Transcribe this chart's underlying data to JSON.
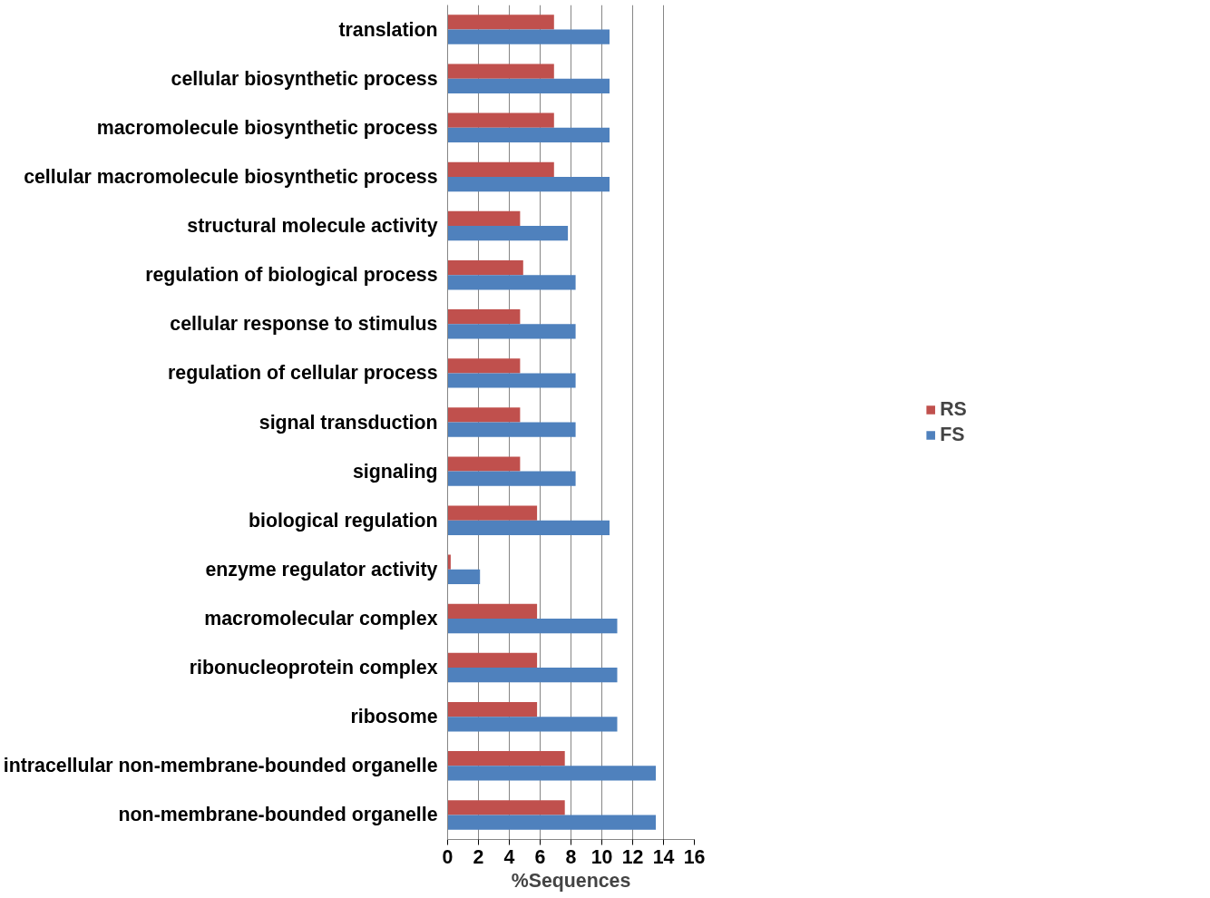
{
  "chart_data": {
    "type": "bar",
    "orientation": "horizontal",
    "xlabel": "%Sequences",
    "categories": [
      "translation",
      "cellular biosynthetic process",
      "macromolecule biosynthetic process",
      "cellular macromolecule biosynthetic process",
      "structural molecule activity",
      "regulation of biological process",
      "cellular response to stimulus",
      "regulation of cellular process",
      "signal transduction",
      "signaling",
      "biological regulation",
      "enzyme regulator activity",
      "macromolecular complex",
      "ribonucleoprotein complex",
      "ribosome",
      "intracellular non-membrane-bounded organelle",
      "non-membrane-bounded organelle"
    ],
    "series": [
      {
        "name": "RS",
        "color": "#c0504d",
        "values": [
          6.9,
          6.9,
          6.9,
          6.9,
          4.7,
          4.9,
          4.7,
          4.7,
          4.7,
          4.7,
          5.8,
          0.2,
          5.8,
          5.8,
          5.8,
          7.6,
          7.6
        ]
      },
      {
        "name": "FS",
        "color": "#4f81bd",
        "values": [
          10.5,
          10.5,
          10.5,
          10.5,
          7.8,
          8.3,
          8.3,
          8.3,
          8.3,
          8.3,
          10.5,
          2.1,
          11.0,
          11.0,
          11.0,
          13.5,
          13.5
        ]
      }
    ],
    "xlim": [
      0,
      16
    ],
    "xticks": [
      0,
      2,
      4,
      6,
      8,
      10,
      12,
      14,
      16
    ],
    "grid": "x",
    "legend": "right"
  }
}
